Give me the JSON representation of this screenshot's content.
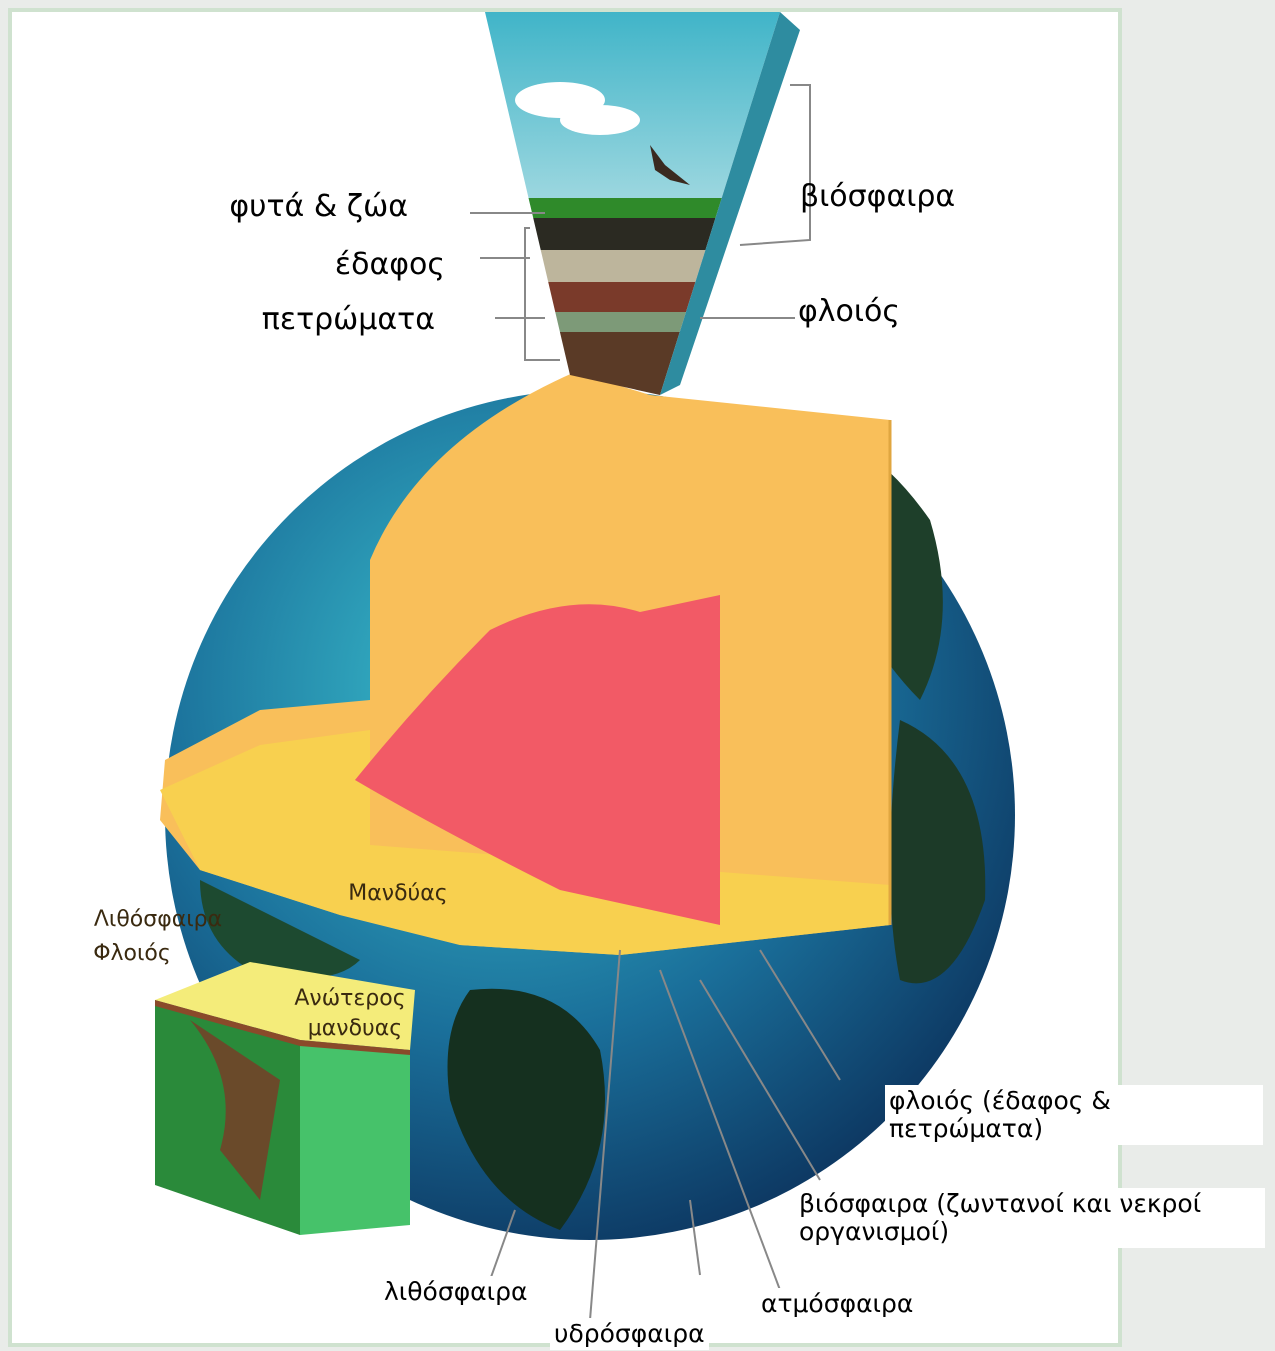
{
  "top_left_labels": [
    "φυτά & ζώα",
    "έδαφος",
    "πετρώματα"
  ],
  "top_right_labels": [
    "βιόσφαιρα",
    "φλοιός"
  ],
  "image_labels": {
    "mantle": "Μανδύας",
    "lithosphere": "Λιθόσφαιρα",
    "crust": "Φλοιός",
    "upper_mantle": [
      "Ανώτερος",
      "μανδυας"
    ]
  },
  "bottom_labels": [
    "φλοιός (έδαφος & πετρώματα)",
    "βιόσφαιρα (ζωντανοί και νεκροί οργανισμοί)",
    "λιθόσφαιρα",
    "υδρόσφαιρα",
    "ατμόσφαιρα"
  ]
}
